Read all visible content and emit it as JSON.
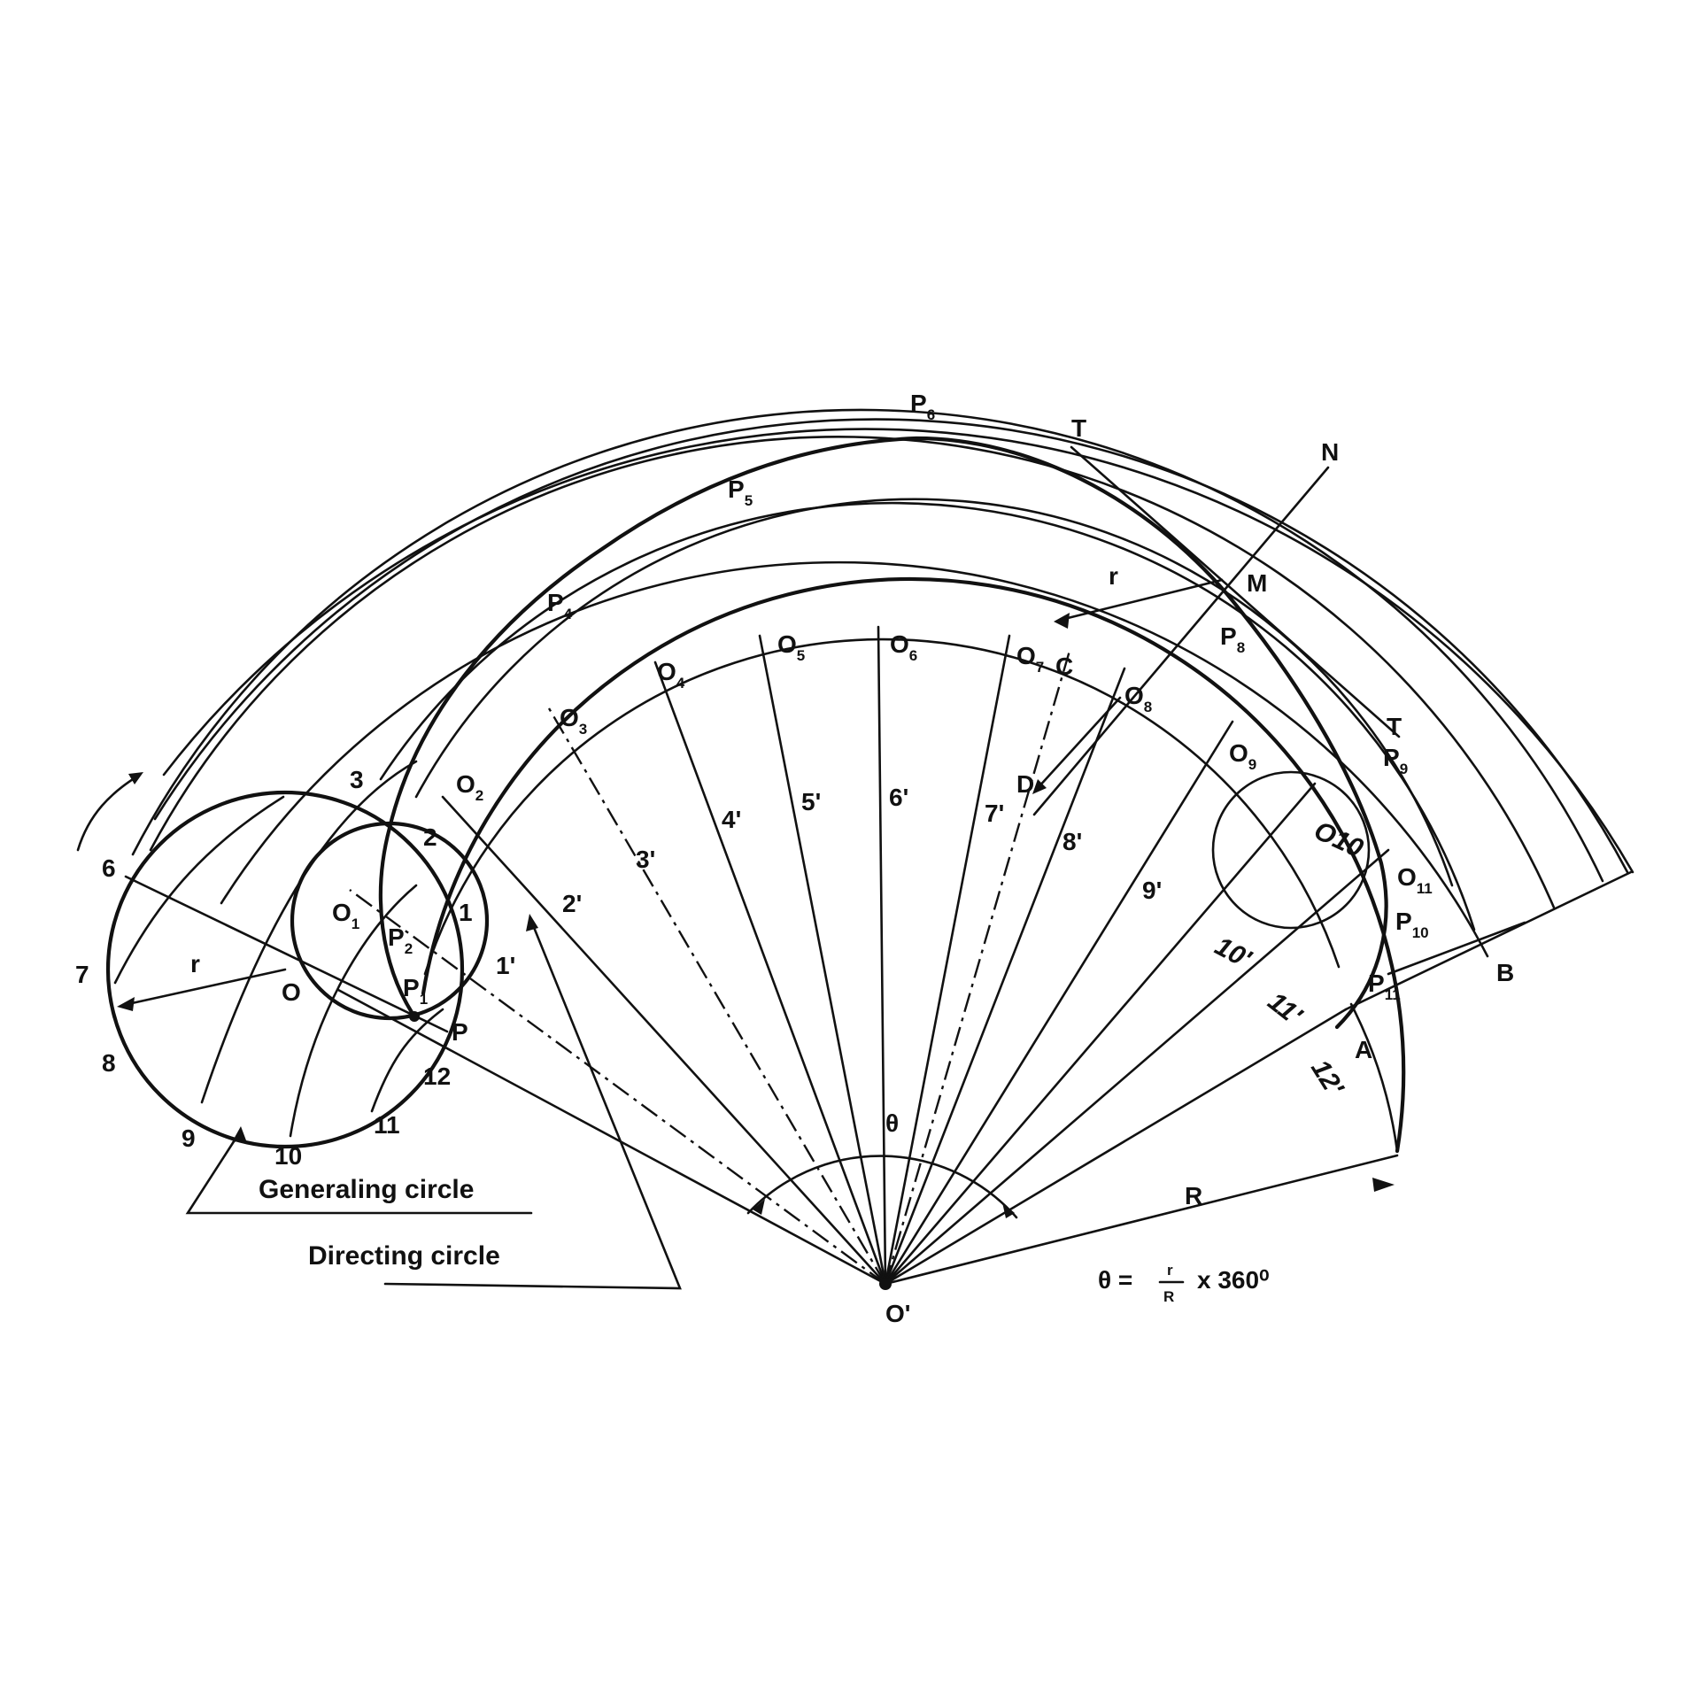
{
  "diagram": {
    "captions": {
      "generating_circle": "Generaling circle",
      "directing_circle": "Directing circle"
    },
    "formula": {
      "lhs": "θ =",
      "numerator": "r",
      "denominator": "R",
      "rhs": "x 360⁰"
    },
    "points": {
      "center_label": "O'",
      "theta": "θ",
      "R": "R",
      "r_generating": "r",
      "r_tangent": "r",
      "O": "O",
      "P": "P",
      "A": "A",
      "B": "B",
      "C": "C",
      "D": "D",
      "M": "M",
      "N": "N",
      "T_top": "T",
      "T_right": "T"
    },
    "generating_circle_numbers": [
      "1",
      "2",
      "3",
      "6",
      "7",
      "8",
      "9",
      "10",
      "11",
      "12"
    ],
    "directing_primes": [
      "1'",
      "2'",
      "3'",
      "4'",
      "5'",
      "6'",
      "7'",
      "8'",
      "9'",
      "10'",
      "11'",
      "12'"
    ],
    "centre_labels": [
      {
        "base": "O",
        "sub": "1"
      },
      {
        "base": "O",
        "sub": "2"
      },
      {
        "base": "O",
        "sub": "3"
      },
      {
        "base": "O",
        "sub": "4"
      },
      {
        "base": "O",
        "sub": "5"
      },
      {
        "base": "O",
        "sub": "6"
      },
      {
        "base": "O",
        "sub": "7"
      },
      {
        "base": "O",
        "sub": "8"
      },
      {
        "base": "O",
        "sub": "9"
      },
      {
        "base": "O10",
        "sub": ""
      },
      {
        "base": "O",
        "sub": "11"
      }
    ],
    "curve_points": [
      {
        "base": "P",
        "sub": "1"
      },
      {
        "base": "P",
        "sub": "2"
      },
      {
        "base": "P",
        "sub": "4"
      },
      {
        "base": "P",
        "sub": "5"
      },
      {
        "base": "P",
        "sub": "6"
      },
      {
        "base": "P",
        "sub": "8"
      },
      {
        "base": "P",
        "sub": "9"
      },
      {
        "base": "P",
        "sub": "10"
      },
      {
        "base": "P",
        "sub": "11"
      }
    ]
  }
}
